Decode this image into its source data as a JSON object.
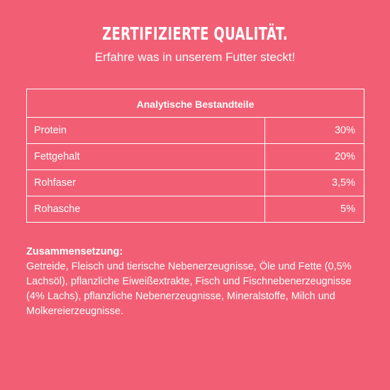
{
  "header": {
    "title": "ZERTIFIZIERTE QUALITÄT.",
    "subtitle": "Erfahre was in unserem Futter steckt!"
  },
  "table": {
    "heading": "Analytische Bestandteile",
    "rows": [
      {
        "name": "Protein",
        "value": "30%"
      },
      {
        "name": "Fettgehalt",
        "value": "20%"
      },
      {
        "name": "Rohfaser",
        "value": "3,5%"
      },
      {
        "name": "Rohasche",
        "value": "5%"
      }
    ]
  },
  "composition": {
    "title": "Zusammensetzung:",
    "lines": [
      "Getreide, Fleisch und tierische Nebenerzeugnisse, Öle und Fette (0,5%",
      "Lachsöl), pflanzliche Eiweißextrakte, Fisch und Fischnebenerzeugnisse",
      "(4% Lachs), pflanzliche Nebenerzeugnisse, Mineralstoffe, Milch und",
      "Molkereierzeugnisse."
    ]
  },
  "colors": {
    "background": "#f25f75",
    "text": "#ffffff"
  }
}
